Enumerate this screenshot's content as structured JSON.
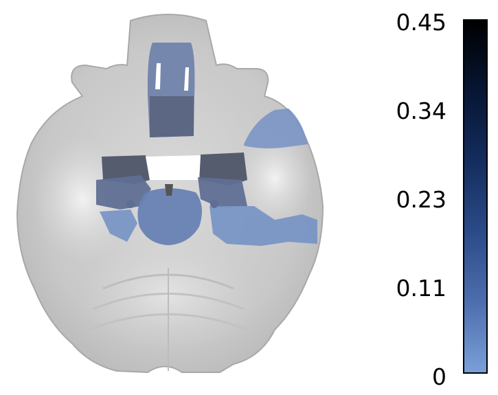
{
  "colorbar": {
    "colors": [
      "#7a9fd8",
      "#4d6eae",
      "#2b4a88",
      "#142d5e",
      "#061633",
      "#000000"
    ],
    "ticks": [
      "0.45",
      "0.34",
      "0.23",
      "0.11",
      "0"
    ]
  },
  "overlay": {
    "color_light": "#7592c4",
    "color_mid": "#5f6f93",
    "color_dark": "#4e5568"
  }
}
